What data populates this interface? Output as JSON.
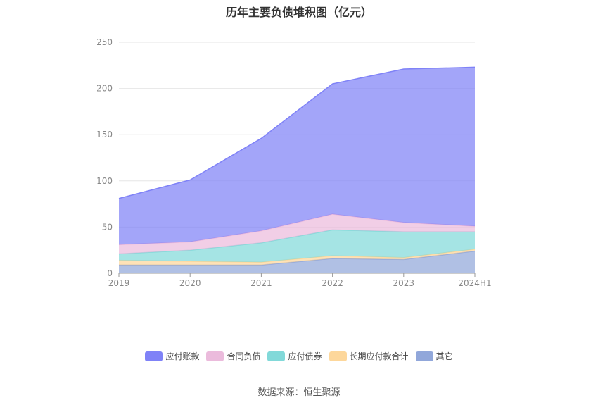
{
  "chart_data": {
    "type": "area",
    "stacked": true,
    "title": "历年主要负债堆积图（亿元）",
    "categories": [
      "2019",
      "2020",
      "2021",
      "2022",
      "2023",
      "2024H1"
    ],
    "ylim": [
      0,
      250
    ],
    "yticks": [
      0,
      50,
      100,
      150,
      200,
      250
    ],
    "grid": true,
    "legend_position": "bottom",
    "series": [
      {
        "name": "其它",
        "color": "#91a7da",
        "values": [
          9,
          9,
          9,
          16,
          15,
          24
        ]
      },
      {
        "name": "长期应付款合计",
        "color": "#fdd79b",
        "values": [
          5,
          4,
          3,
          3,
          2,
          2
        ]
      },
      {
        "name": "应付债券",
        "color": "#82d9d9",
        "values": [
          7,
          12,
          21,
          28,
          28,
          19
        ]
      },
      {
        "name": "合同负债",
        "color": "#ebbbdc",
        "values": [
          10,
          9,
          13,
          17,
          10,
          6
        ]
      },
      {
        "name": "应付账款",
        "color": "#7f82f7",
        "values": [
          50,
          67,
          100,
          141,
          166,
          172
        ]
      }
    ]
  },
  "legend": {
    "items": [
      {
        "label": "应付账款",
        "color": "#7f82f7"
      },
      {
        "label": "合同负债",
        "color": "#ebbbdc"
      },
      {
        "label": "应付债券",
        "color": "#82d9d9"
      },
      {
        "label": "长期应付款合计",
        "color": "#fdd79b"
      },
      {
        "label": "其它",
        "color": "#91a7da"
      }
    ]
  },
  "source": "数据来源：恒生聚源"
}
